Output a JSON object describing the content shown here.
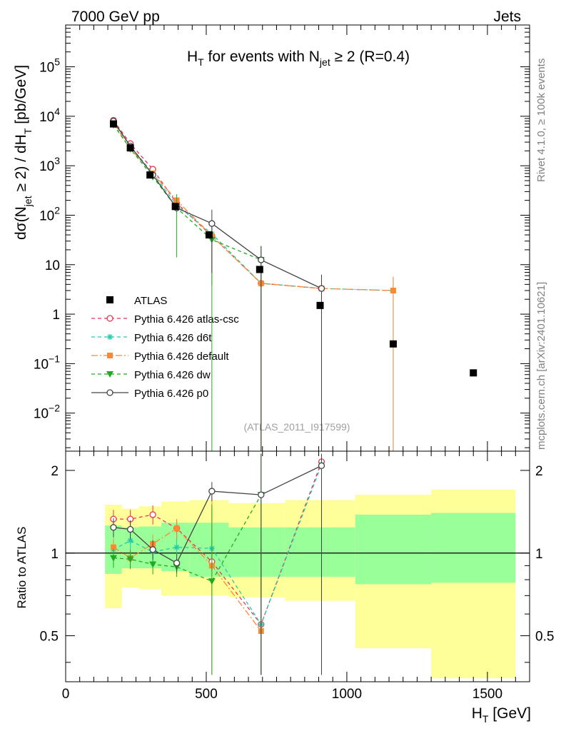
{
  "header": {
    "left": "7000 GeV pp",
    "right": "Jets"
  },
  "side_labels": {
    "rivet": "Rivet 4.1.0, ≥ 100k events",
    "mcplots": "mcplots.cern.ch [arXiv:2401.10621]"
  },
  "analysis_ref": "(ATLAS_2011_I917599)",
  "chart_data": {
    "type": "line",
    "title": "H_T for events with N_jet ≥ 2 (R=0.4)",
    "title_parts": {
      "h": "H",
      "t": "T",
      "mid": " for events with N",
      "jet": "jet",
      "tail": " ≥ 2 (R=0.4)"
    },
    "xlabel": "H_T [GeV]",
    "xlabel_parts": {
      "h": "H",
      "t": "T",
      "unit": " [GeV]"
    },
    "ylabel": "dσ(N_jet ≥ 2) / dH_T [pb/GeV]",
    "ylabel_parts": {
      "a": "dσ(N",
      "jet": "jet",
      "b": " ≥ 2) / dH",
      "t": "T",
      "c": " [pb/GeV]"
    },
    "ratio_ylabel": "Ratio to ATLAS",
    "xlim": [
      0,
      1650
    ],
    "ylim": [
      0.0017,
      700000
    ],
    "yscale": "log",
    "ratio_ylim": [
      0.34,
      2.35
    ],
    "x_ticks": [
      "0",
      "500",
      "1000",
      "1500"
    ],
    "ratio_ticks": [
      "0.5",
      "1",
      "2"
    ],
    "reference": {
      "name": "ATLAS",
      "bin_edges": [
        140,
        200,
        260,
        340,
        440,
        580,
        780,
        1030,
        1300,
        1600
      ],
      "x": [
        170,
        230,
        300,
        390,
        510,
        690,
        905,
        1165,
        1450
      ],
      "y": [
        7000,
        2300,
        650,
        150,
        40,
        8,
        1.5,
        0.25,
        0.065
      ],
      "band_inner": [
        [
          0.84,
          1.26
        ],
        [
          0.88,
          1.24
        ],
        [
          0.88,
          1.25
        ],
        [
          0.86,
          1.29
        ],
        [
          0.82,
          1.29
        ],
        [
          0.82,
          1.24
        ],
        [
          0.82,
          1.24
        ],
        [
          0.77,
          1.38
        ],
        [
          0.78,
          1.4
        ]
      ],
      "band_outer": [
        [
          0.63,
          1.5
        ],
        [
          0.75,
          1.45
        ],
        [
          0.74,
          1.48
        ],
        [
          0.7,
          1.54
        ],
        [
          0.7,
          1.56
        ],
        [
          0.69,
          1.52
        ],
        [
          0.67,
          1.56
        ],
        [
          0.45,
          1.63
        ],
        [
          0.35,
          1.7
        ]
      ]
    },
    "series": [
      {
        "name": "Pythia 6.426 atlas-csc",
        "color": "#ee3355",
        "dash": "5,4",
        "marker": "circle-open",
        "x": [
          170,
          230,
          310,
          395,
          520,
          695,
          910
        ],
        "y": [
          8300,
          2800,
          850,
          175,
          38,
          4.2,
          3.3
        ],
        "ratio": [
          1.33,
          1.33,
          1.38,
          1.23,
          0.93,
          0.55,
          2.15
        ]
      },
      {
        "name": "Pythia 6.426 d6t",
        "color": "#22ccaa",
        "dash": "5,4",
        "marker": "star",
        "x": [
          170,
          230,
          310,
          395,
          520,
          695,
          910,
          1165
        ],
        "y": [
          7500,
          2500,
          700,
          160,
          42,
          4.2,
          3.3,
          3.0
        ],
        "ratio": [
          1.03,
          1.11,
          1.01,
          1.05,
          1.04,
          0.55,
          2.1,
          null
        ]
      },
      {
        "name": "Pythia 6.426 default",
        "color": "#ff8833",
        "dash": "9,3,2,3",
        "marker": "square",
        "x": [
          170,
          230,
          310,
          395,
          520,
          695,
          910,
          1165
        ],
        "y": [
          7300,
          2200,
          700,
          200,
          38,
          4.2,
          3.3,
          3.0
        ],
        "ratio": [
          1.05,
          0.96,
          1.08,
          1.23,
          0.9,
          0.52,
          null,
          null
        ]
      },
      {
        "name": "Pythia 6.426 dw",
        "color": "#22aa22",
        "dash": "5,4",
        "marker": "triangle-down",
        "x": [
          170,
          230,
          310,
          395,
          520,
          695
        ],
        "y": [
          6700,
          2200,
          600,
          140,
          32,
          12.5
        ],
        "ratio": [
          0.96,
          0.95,
          0.91,
          0.89,
          0.79,
          1.63
        ]
      },
      {
        "name": "Pythia 6.426 p0",
        "color": "#444444",
        "dash": "",
        "marker": "circle-open",
        "x": [
          170,
          230,
          310,
          395,
          520,
          695,
          910
        ],
        "y": [
          8000,
          2500,
          650,
          140,
          68,
          12.5,
          3.3
        ],
        "ratio": [
          1.24,
          1.22,
          1.03,
          0.92,
          1.68,
          1.63,
          2.08
        ]
      }
    ]
  }
}
